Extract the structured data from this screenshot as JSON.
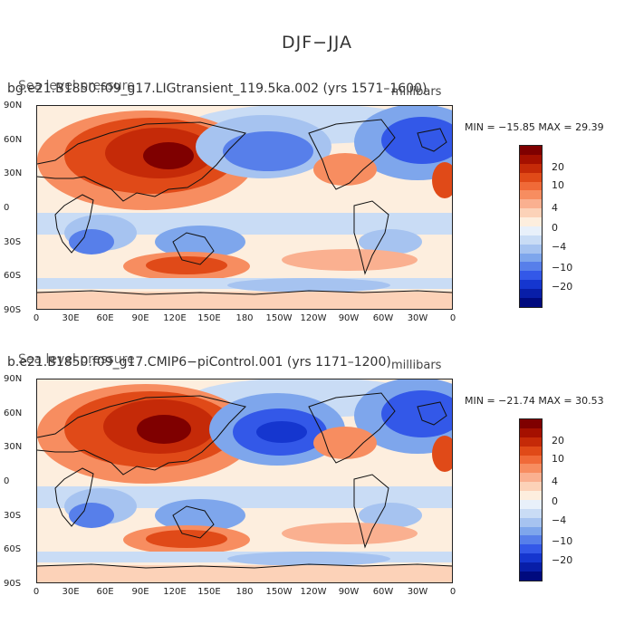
{
  "title": "DJF−JJA",
  "palette": [
    "#7f0000",
    "#a51000",
    "#c52a08",
    "#e04a18",
    "#f06a38",
    "#f78d60",
    "#fab090",
    "#fcd2b8",
    "#fdeede",
    "#e8f0fa",
    "#c9dcf5",
    "#a6c3f0",
    "#7ea6ec",
    "#577fea",
    "#3358e8",
    "#1536cf",
    "#081ea8",
    "#000a7e"
  ],
  "colorbar_labels": [
    "20",
    "10",
    "4",
    "0",
    "−4",
    "−10",
    "−20"
  ],
  "x_ticks": [
    "0",
    "30E",
    "60E",
    "90E",
    "120E",
    "150E",
    "180",
    "150W",
    "120W",
    "90W",
    "60W",
    "30W",
    "0"
  ],
  "y_ticks": [
    "90N",
    "60N",
    "30N",
    "0",
    "30S",
    "60S",
    "90S"
  ],
  "panels": [
    {
      "case": "bg.e21.B1850.f09_g17.LIGtransient_119.5ka.002 (yrs 1571–1600)",
      "variable": "Sea level pressure",
      "units": "millibars",
      "min_max": "MIN = −15.85  MAX =  29.39"
    },
    {
      "case": "b.e21.B1850.f09_g17.CMIP6−piControl.001 (yrs 1171–1200)",
      "variable": "Sea level pressure",
      "units": "millibars",
      "min_max": "MIN = −21.74  MAX =  30.53"
    }
  ]
}
